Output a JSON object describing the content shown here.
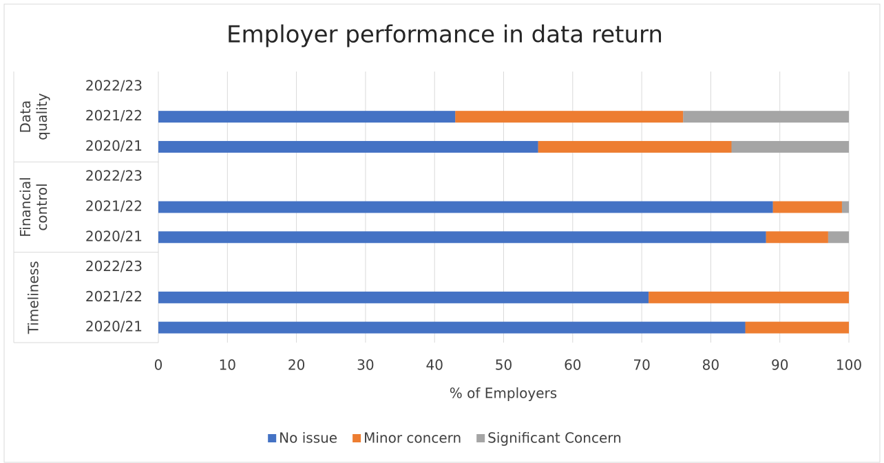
{
  "chart_data": {
    "type": "stacked_bar_horizontal",
    "title": "Employer performance in data return",
    "x_label": "% of Employers",
    "groups": [
      {
        "name": "Data quality",
        "categories": [
          "2022/23",
          "2021/22",
          "2020/21"
        ]
      },
      {
        "name": "Financial control",
        "categories": [
          "2022/23",
          "2021/22",
          "2020/21"
        ]
      },
      {
        "name": "Timeliness",
        "categories": [
          "2022/23",
          "2021/22",
          "2020/21"
        ]
      }
    ],
    "series": [
      {
        "name": "No issue",
        "color": "#4472c4",
        "values": [
          null,
          43,
          55,
          null,
          89,
          88,
          null,
          71,
          85
        ]
      },
      {
        "name": "Minor concern",
        "color": "#ed7d31",
        "values": [
          null,
          33,
          28,
          null,
          10,
          9,
          null,
          29,
          15
        ]
      },
      {
        "name": "Significant Concern",
        "color": "#a5a5a5",
        "values": [
          null,
          24,
          17,
          null,
          1,
          3,
          null,
          0,
          0
        ]
      }
    ],
    "xlim": [
      0,
      100
    ],
    "xticks": [
      0,
      10,
      20,
      30,
      40,
      50,
      60,
      70,
      80,
      90,
      100
    ],
    "grid": true,
    "legend": "bottom"
  }
}
